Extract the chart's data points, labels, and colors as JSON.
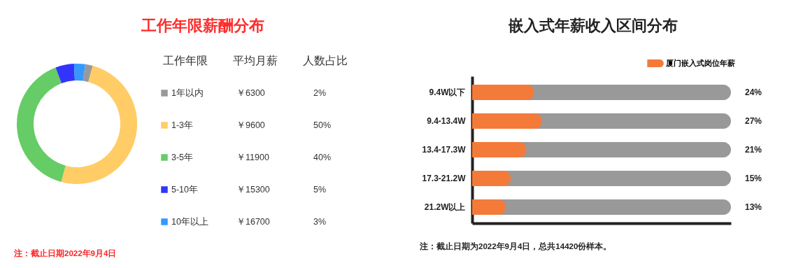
{
  "chart_data": [
    {
      "type": "donut",
      "title": "工作年限薪酬分布",
      "legend_title": "工作年限",
      "legend": "right",
      "categories": [
        "1年以内",
        "1-3年",
        "3-5年",
        "5-10年",
        "10年以上"
      ],
      "values": [
        2,
        50,
        40,
        5,
        3
      ],
      "colors": [
        "#999999",
        "#ffcc66",
        "#66cc66",
        "#3333ff",
        "#3399ff"
      ],
      "value_labels": [
        "2%",
        "50%",
        "40%",
        "5%",
        "3%"
      ],
      "annotations": [
        "平均月薪",
        "人数占比",
        "￥6300",
        "￥9600",
        "￥11900",
        "￥15300",
        "￥16700",
        "注：截止日期2022年9月4日"
      ]
    },
    {
      "type": "bar",
      "orientation": "horizontal",
      "title": "嵌入式年薪收入区间分布",
      "legend": "top right",
      "tick_labels": "y",
      "categories": [
        "9.4W以下",
        "9.4-13.4W",
        "13.4-17.3W",
        "17.3-21.2W",
        "21.2W以上"
      ],
      "xlim": [
        0,
        100
      ],
      "series": [
        {
          "name": "厦门嵌入式岗位年薪",
          "color": "#f47a3a",
          "values": [
            24,
            27,
            21,
            15,
            13
          ],
          "value_labels": [
            "24%",
            "27%",
            "21%",
            "15%",
            "13%"
          ]
        }
      ],
      "annotations": [
        "注：截止日期为2022年9月4日，总共14420份样本。"
      ]
    }
  ]
}
